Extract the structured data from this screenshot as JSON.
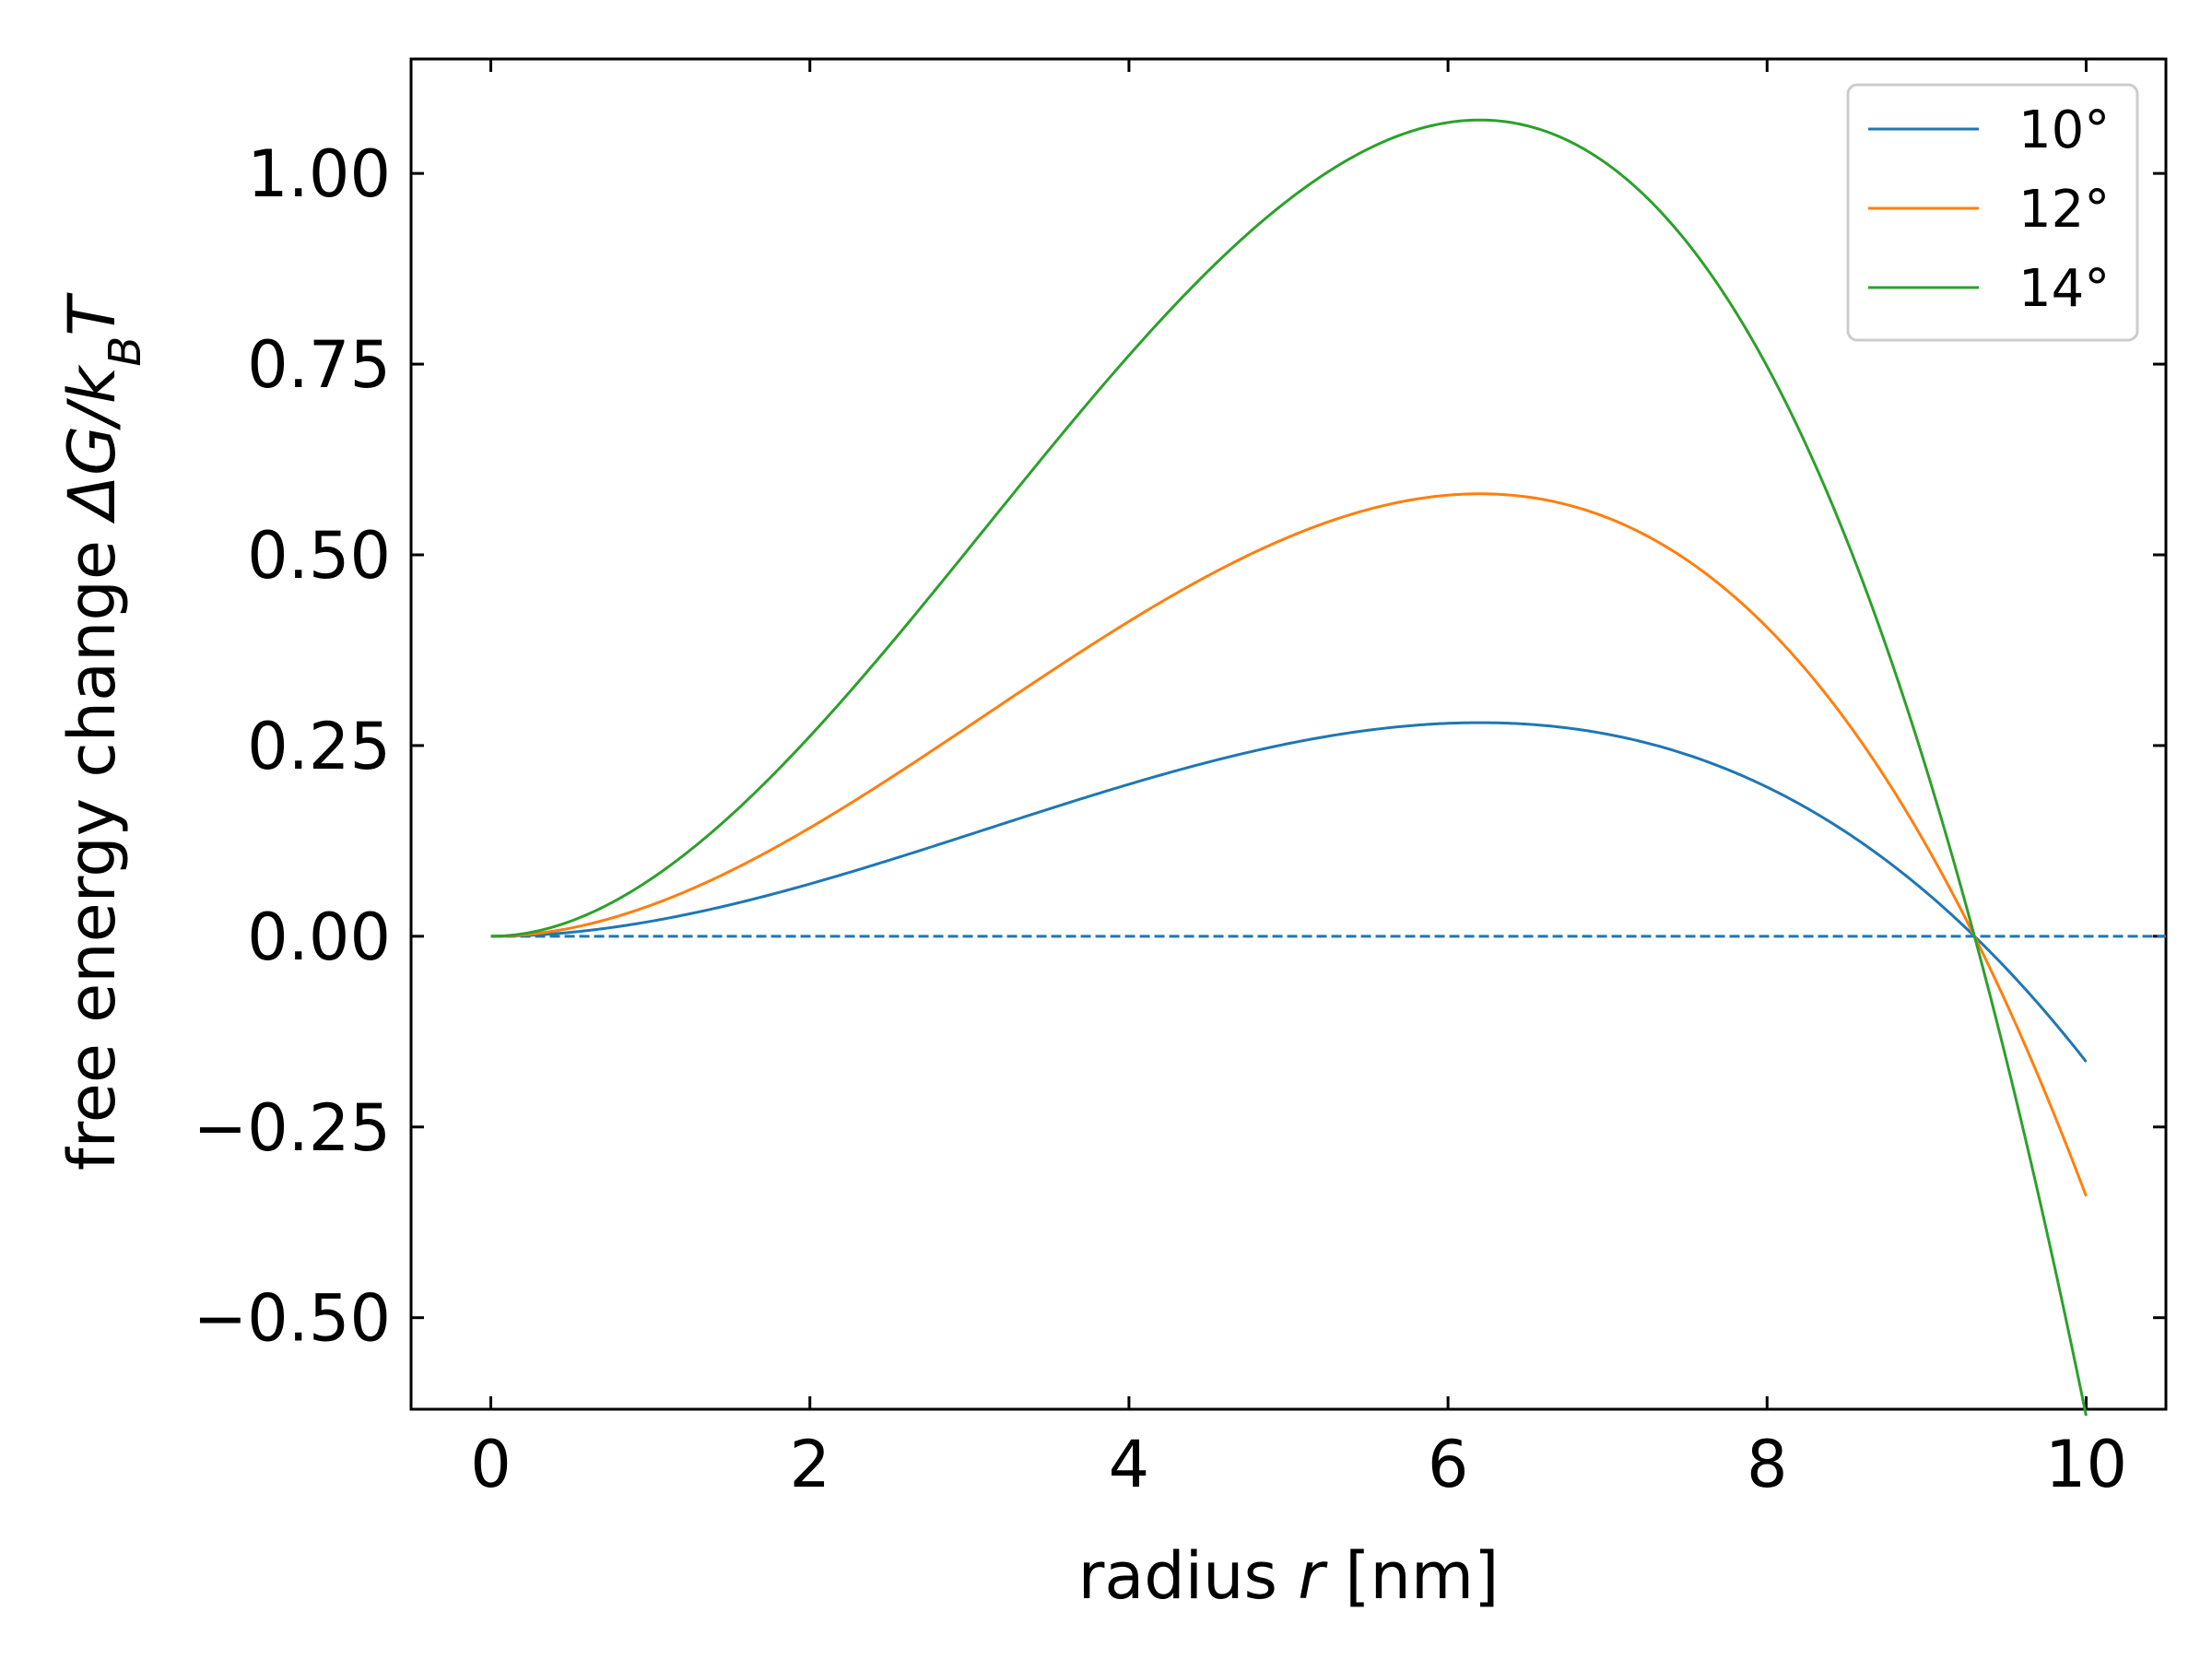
{
  "chart_data": {
    "type": "line",
    "xlabel": {
      "prefix": "radius ",
      "var": "r",
      "suffix": " [nm]"
    },
    "ylabel": {
      "prefix": "free energy change ",
      "math": "ΔG/k",
      "sub": "B",
      "tail": "T"
    },
    "xlim": [
      -0.5,
      10.5
    ],
    "ylim": [
      -0.62,
      1.15
    ],
    "xticks": [
      0,
      2,
      4,
      6,
      8,
      10
    ],
    "xtick_labels": [
      "0",
      "2",
      "4",
      "6",
      "8",
      "10"
    ],
    "yticks": [
      -0.5,
      -0.25,
      0.0,
      0.25,
      0.5,
      0.75,
      1.0
    ],
    "ytick_labels": [
      "−0.50",
      "−0.25",
      "0.00",
      "0.25",
      "0.50",
      "0.75",
      "1.00"
    ],
    "grid": false,
    "legend_position": "top-right",
    "reference_line": {
      "y": 0.0,
      "style": "dashed",
      "color": "#1f77b4"
    },
    "model": {
      "r_peak": 6.2,
      "r_zero": 9.3,
      "r_end": 10.0
    },
    "series": [
      {
        "name": "10°",
        "color": "#1f77b4",
        "peak": 0.28,
        "end_value": -0.16
      },
      {
        "name": "12°",
        "color": "#ff7f0e",
        "peak": 0.58,
        "end_value": -0.33
      },
      {
        "name": "14°",
        "color": "#2ca02c",
        "peak": 1.07,
        "end_value": -0.605
      }
    ]
  }
}
